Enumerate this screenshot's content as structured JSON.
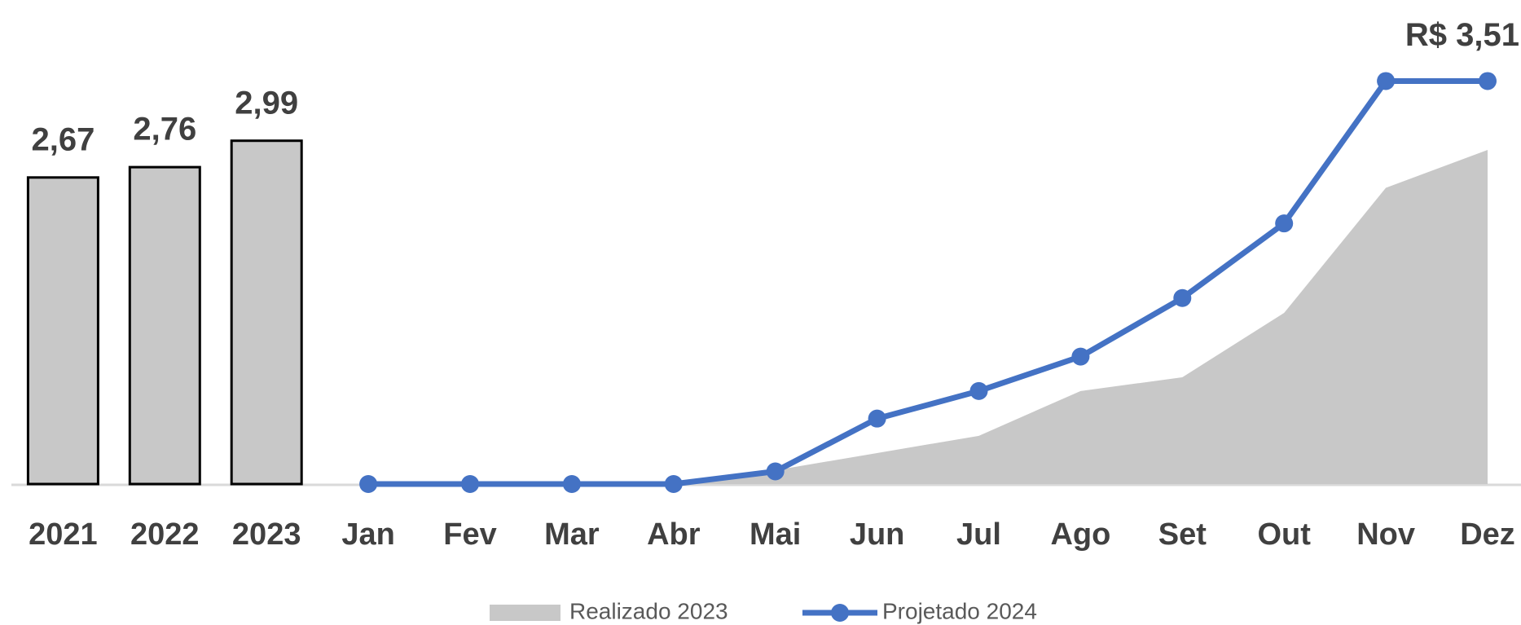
{
  "chart_data": {
    "type": "combo",
    "categories": [
      "2021",
      "2022",
      "2023",
      "Jan",
      "Fev",
      "Mar",
      "Abr",
      "Mai",
      "Jun",
      "Jul",
      "Ago",
      "Set",
      "Out",
      "Nov",
      "Dez"
    ],
    "series": [
      {
        "type": "bar",
        "color": "#c8c8c8",
        "values": [
          2.67,
          2.76,
          2.99,
          null,
          null,
          null,
          null,
          null,
          null,
          null,
          null,
          null,
          null,
          null,
          null
        ],
        "value_labels": [
          "2,67",
          "2,76",
          "2,99",
          null,
          null,
          null,
          null,
          null,
          null,
          null,
          null,
          null,
          null,
          null,
          null
        ]
      },
      {
        "type": "area",
        "name": "Realizado 2023",
        "color": "#c8c8c8",
        "values": [
          null,
          null,
          null,
          0,
          0,
          0,
          0.02,
          0.12,
          0.27,
          0.42,
          0.81,
          0.93,
          1.49,
          2.58,
          2.91
        ]
      },
      {
        "type": "line",
        "name": "Projetado 2024",
        "color": "#4472c4",
        "values": [
          null,
          null,
          null,
          0,
          0,
          0,
          0,
          0.11,
          0.57,
          0.81,
          1.11,
          1.62,
          2.27,
          3.51,
          3.51
        ],
        "value_labels": [
          null,
          null,
          null,
          null,
          null,
          null,
          null,
          null,
          null,
          null,
          null,
          null,
          null,
          "R$ 3,51",
          null
        ]
      }
    ],
    "legend": "bottom"
  }
}
